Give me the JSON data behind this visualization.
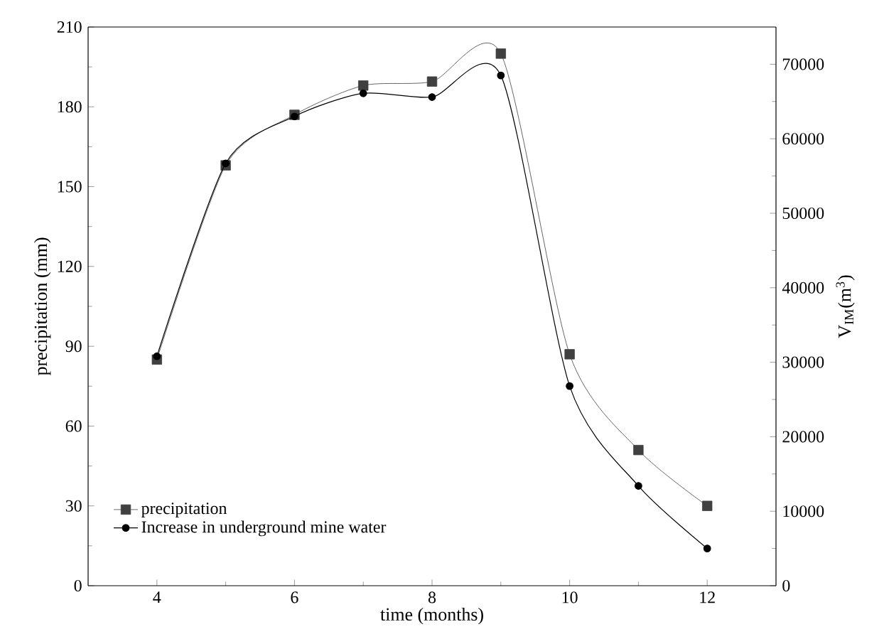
{
  "chart_data": {
    "type": "line",
    "xlabel": "time (months)",
    "ylabel": "precipitation (mm)",
    "y2label": "V$_{IM}$(m$^{3}$)",
    "x": [
      4,
      5,
      6,
      7,
      8,
      9,
      10,
      11,
      12
    ],
    "series": [
      {
        "name": "precipitation",
        "color": "#404040",
        "marker": "square",
        "values": [
          85,
          158,
          177,
          188,
          189.5,
          200,
          87,
          51,
          30
        ]
      },
      {
        "name": "Increase in underground mine water",
        "color": "#000000",
        "marker": "circle",
        "axis": "y2",
        "values": [
          30800,
          56700,
          63000,
          66100,
          65600,
          68500,
          26800,
          13400,
          5000
        ]
      }
    ],
    "xlim": [
      3,
      13
    ],
    "xticks": [
      4,
      6,
      8,
      10,
      12
    ],
    "ylim": [
      0,
      210
    ],
    "yticks": [
      0,
      30,
      60,
      90,
      120,
      150,
      180,
      210
    ],
    "y2lim": [
      0,
      75000
    ],
    "y2ticks": [
      0,
      10000,
      20000,
      30000,
      40000,
      50000,
      60000,
      70000
    ],
    "legend": "bottom left"
  }
}
